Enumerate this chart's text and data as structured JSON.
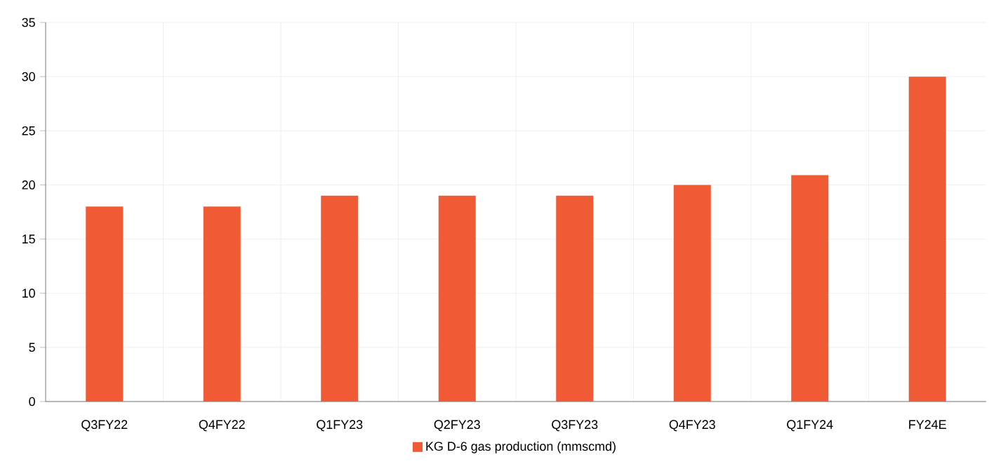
{
  "chart_data": {
    "type": "bar",
    "categories": [
      "Q3FY22",
      "Q4FY22",
      "Q1FY23",
      "Q2FY23",
      "Q3FY23",
      "Q4FY23",
      "Q1FY24",
      "FY24E"
    ],
    "series": [
      {
        "name": "KG D-6 gas production (mmscmd)",
        "color": "#f05a35",
        "values": [
          18,
          18,
          19,
          19,
          19,
          20,
          20.9,
          30
        ]
      }
    ],
    "ylim": [
      0,
      35
    ],
    "yticks": [
      0,
      5,
      10,
      15,
      20,
      25,
      30,
      35
    ],
    "grid": true,
    "legend": "bottom"
  }
}
